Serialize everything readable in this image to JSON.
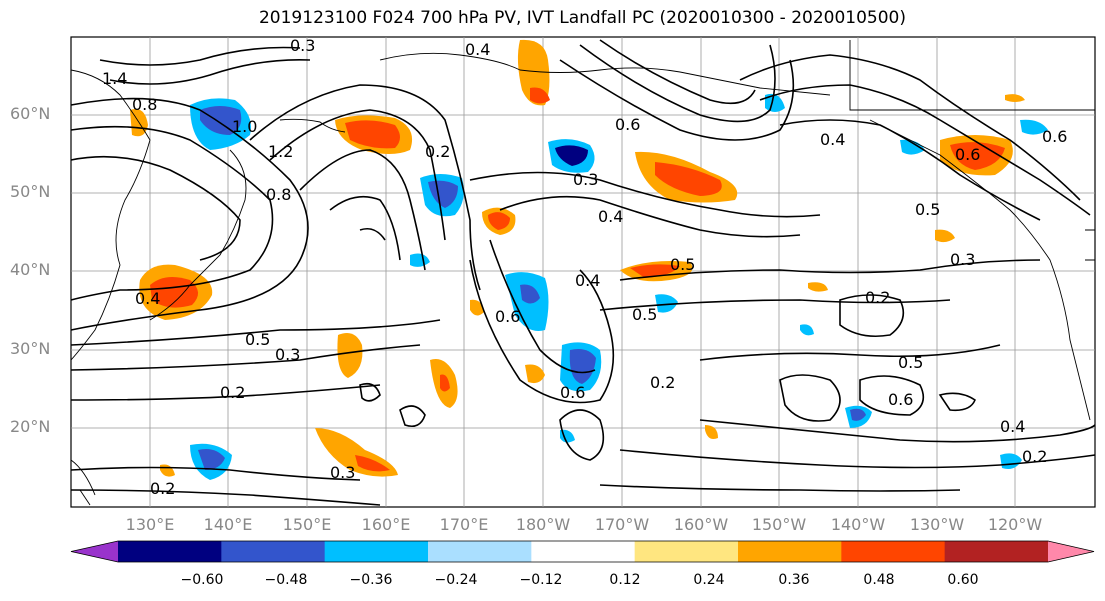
{
  "title": "2019123100 F024 700 hPa PV, IVT Landfall PC (2020010300 - 2020010500)",
  "lat_labels": [
    "60°N",
    "50°N",
    "40°N",
    "30°N",
    "20°N"
  ],
  "lon_labels": [
    "130°E",
    "140°E",
    "150°E",
    "160°E",
    "170°E",
    "180°W",
    "170°W",
    "160°W",
    "150°W",
    "140°W",
    "130°W",
    "120°W"
  ],
  "contour_labels": [
    "0.3",
    "0.4",
    "1.4",
    "0.8",
    "1.0",
    "1.2",
    "0.8",
    "0.2",
    "0.6",
    "0.3",
    "0.4",
    "0.5",
    "0.4",
    "0.6",
    "0.5",
    "0.3",
    "0.2",
    "0.2",
    "0.5",
    "0.6",
    "0.4",
    "0.2",
    "0.3",
    "0.2",
    "0.5",
    "0.3",
    "0.6",
    "0.4",
    "0.6",
    "0.5",
    "0.2",
    "0.4",
    "0.6"
  ],
  "colorbar": {
    "colors": [
      "#9933cc",
      "#000080",
      "#3355cc",
      "#00bfff",
      "#aadfff",
      "#ffffff",
      "#ffe680",
      "#ffa500",
      "#ff4500",
      "#b22222",
      "#ff88aa"
    ],
    "tick_labels": [
      "−0.60",
      "−0.48",
      "−0.36",
      "−0.24",
      "−0.12",
      "0.12",
      "0.24",
      "0.36",
      "0.48",
      "0.60"
    ]
  }
}
